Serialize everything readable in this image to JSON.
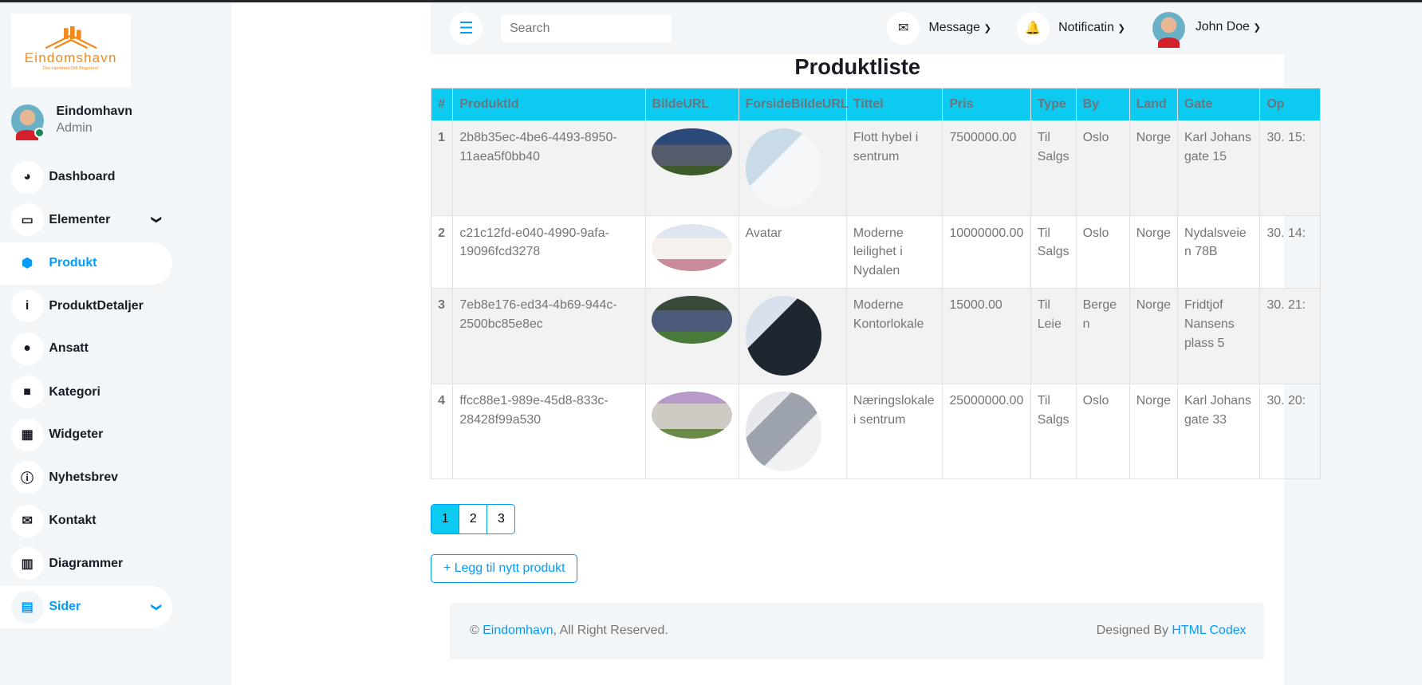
{
  "brand": {
    "logo_name": "Eindomshavn",
    "logo_tagline": "Der Hjemmet Ditt Begynner"
  },
  "profile": {
    "name": "Eindomhavn",
    "role": "Admin"
  },
  "sidebar": {
    "items": [
      {
        "label": "Dashboard",
        "icon": "gauge-icon",
        "glyph": "◕"
      },
      {
        "label": "Elementer",
        "icon": "laptop-icon",
        "glyph": "▭",
        "chevron": true
      },
      {
        "label": "Produkt",
        "icon": "cube-icon",
        "glyph": "⬢",
        "active": true
      },
      {
        "label": "ProduktDetaljer",
        "icon": "info-icon",
        "glyph": "i"
      },
      {
        "label": "Ansatt",
        "icon": "user-icon",
        "glyph": "●"
      },
      {
        "label": "Kategori",
        "icon": "folder-icon",
        "glyph": "■"
      },
      {
        "label": "Widgeter",
        "icon": "grid-icon",
        "glyph": "▦"
      },
      {
        "label": "Nyhetsbrev",
        "icon": "info-circle-icon",
        "glyph": "ⓘ"
      },
      {
        "label": "Kontakt",
        "icon": "envelope-open-icon",
        "glyph": "✉"
      },
      {
        "label": "Diagrammer",
        "icon": "chart-bar-icon",
        "glyph": "▥"
      },
      {
        "label": "Sider",
        "icon": "file-icon",
        "glyph": "▤",
        "chevron": true
      }
    ]
  },
  "header": {
    "menu_icon": "☰",
    "search_placeholder": "Search",
    "message": "Message",
    "notification": "Notificatin",
    "user": "John Doe"
  },
  "page": {
    "title": "Produktliste"
  },
  "table": {
    "columns": [
      "#",
      "ProduktId",
      "BildeURL",
      "ForsideBildeURL",
      "Tittel",
      "Pris",
      "Type",
      "By",
      "Land",
      "Gate",
      "Op"
    ],
    "rows": [
      {
        "n": "1",
        "id": "2b8b35ec-4be6-4493-8950-11aea5f0bb40",
        "forside": "image",
        "tittel": "Flott hybel i sentrum",
        "pris": "7500000.00",
        "type": "Til Salgs",
        "by": "Oslo",
        "land": "Norge",
        "gate": "Karl Johans gate 15",
        "op": "30. 15:"
      },
      {
        "n": "2",
        "id": "c21c12fd-e040-4990-9afa-19096fcd3278",
        "forside": "Avatar",
        "tittel": "Moderne leilighet i Nydalen",
        "pris": "10000000.00",
        "type": "Til Salgs",
        "by": "Oslo",
        "land": "Norge",
        "gate": "Nydalsveien 78B",
        "op": "30. 14:"
      },
      {
        "n": "3",
        "id": "7eb8e176-ed34-4b69-944c-2500bc85e8ec",
        "forside": "image",
        "tittel": "Moderne Kontorlokale",
        "pris": "15000.00",
        "type": "Til Leie",
        "by": "Bergen",
        "land": "Norge",
        "gate": "Fridtjof Nansens plass 5",
        "op": "30. 21:"
      },
      {
        "n": "4",
        "id": "ffcc88e1-989e-45d8-833c-28428f99a530",
        "forside": "image",
        "tittel": "Næringslokale i sentrum",
        "pris": "25000000.00",
        "type": "Til Salgs",
        "by": "Oslo",
        "land": "Norge",
        "gate": "Karl Johans gate 33",
        "op": "30. 20:"
      }
    ]
  },
  "pagination": {
    "pages": [
      "1",
      "2",
      "3"
    ],
    "current": "1"
  },
  "add_button": "+ Legg til nytt produkt",
  "footer": {
    "copy": "© ",
    "brand_link": "Eindomhavn",
    "rights": ", All Right Reserved.",
    "designed": "Designed By ",
    "designer_link": "HTML Codex"
  },
  "colors": {
    "accent": "#009cff",
    "table_header": "#0dcaf0",
    "sidebar_bg": "#f3f6f9"
  }
}
